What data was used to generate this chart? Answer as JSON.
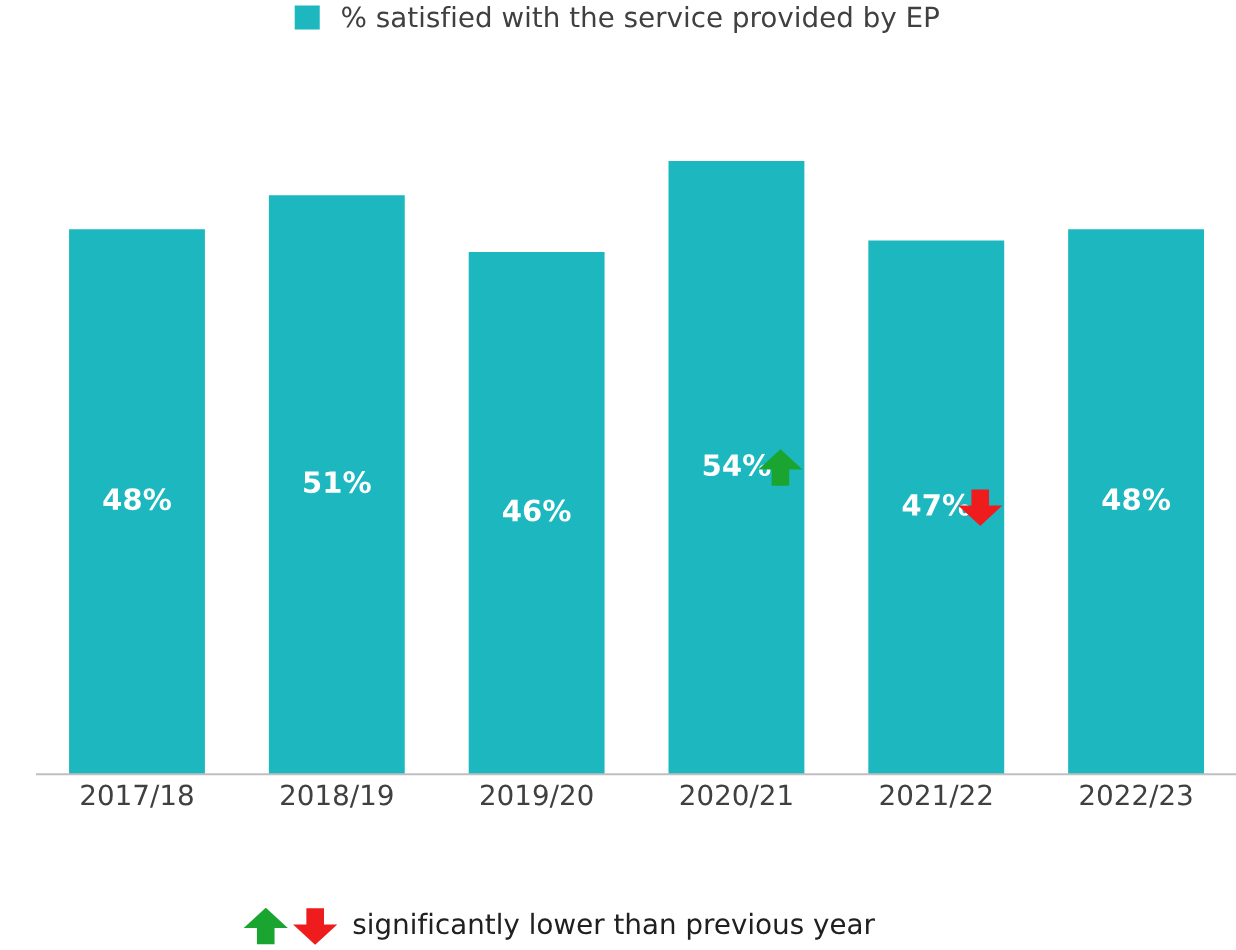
{
  "chart_data": {
    "type": "bar",
    "categories": [
      "2017/18",
      "2018/19",
      "2019/20",
      "2020/21",
      "2021/22",
      "2022/23"
    ],
    "series": [
      {
        "name": "% satisfied with the service provided by EP",
        "color": "#1db8bf",
        "values": [
          48,
          51,
          46,
          54,
          47,
          48
        ],
        "value_labels": [
          "48%",
          "51%",
          "46%",
          "54%",
          "47%",
          "48%"
        ]
      }
    ],
    "legend": "top",
    "grid": false,
    "tick_labels": "x",
    "annotations": [
      "significantly lower than previous year"
    ]
  }
}
